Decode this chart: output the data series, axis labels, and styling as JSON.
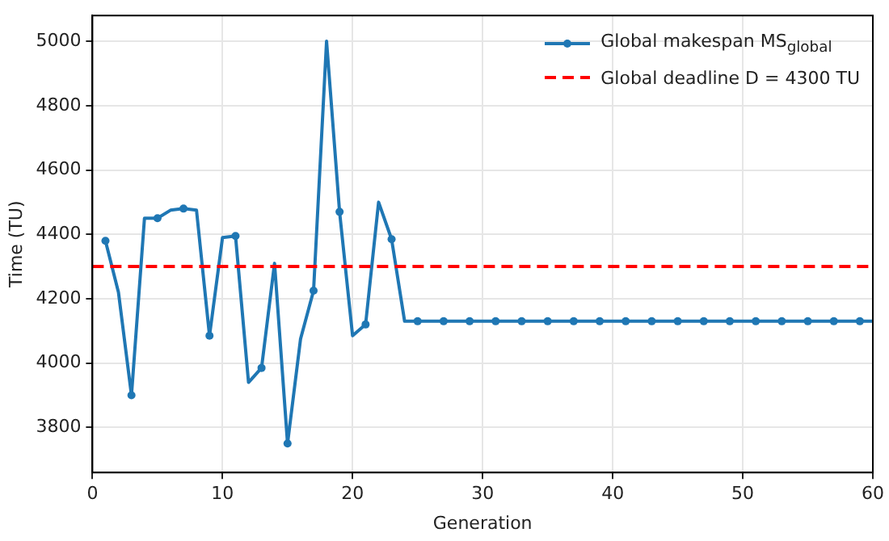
{
  "chart_data": {
    "type": "line",
    "xlabel": "Generation",
    "ylabel": "Time (TU)",
    "x": [
      1,
      2,
      3,
      4,
      5,
      6,
      7,
      8,
      9,
      10,
      11,
      12,
      13,
      14,
      15,
      16,
      17,
      18,
      19,
      20,
      21,
      22,
      23,
      24,
      25,
      26,
      27,
      28,
      29,
      30,
      31,
      32,
      33,
      34,
      35,
      36,
      37,
      38,
      39,
      40,
      41,
      42,
      43,
      44,
      45,
      46,
      47,
      48,
      49,
      50,
      51,
      52,
      53,
      54,
      55,
      56,
      57,
      58,
      59,
      60
    ],
    "series": [
      {
        "name": "Global makespan MS$_{global}$",
        "color": "#1f77b4",
        "values": [
          4380,
          4220,
          3900,
          4450,
          4450,
          4475,
          4480,
          4475,
          4085,
          4390,
          4395,
          3940,
          3985,
          4310,
          3750,
          4075,
          4225,
          5000,
          4470,
          4085,
          4120,
          4500,
          4385,
          4130,
          4130,
          4130,
          4130,
          4130,
          4130,
          4130,
          4130,
          4130,
          4130,
          4130,
          4130,
          4130,
          4130,
          4130,
          4130,
          4130,
          4130,
          4130,
          4130,
          4130,
          4130,
          4130,
          4130,
          4130,
          4130,
          4130,
          4130,
          4130,
          4130,
          4130,
          4130,
          4130,
          4130,
          4130,
          4130,
          4130
        ]
      }
    ],
    "ref_lines": [
      {
        "axis": "y",
        "value": 4300,
        "label": "Global deadline D = 4300 TU",
        "color": "#ff0000",
        "line_style": "dashed"
      }
    ],
    "xlim": [
      0,
      60
    ],
    "xticks": [
      0,
      10,
      20,
      30,
      40,
      50,
      60
    ],
    "ylim": [
      3660,
      5080
    ],
    "yticks": [
      3800,
      4000,
      4200,
      4400,
      4600,
      4800,
      5000
    ],
    "grid": true,
    "legend": "top right",
    "marker": "circle",
    "line_style": "solid"
  }
}
